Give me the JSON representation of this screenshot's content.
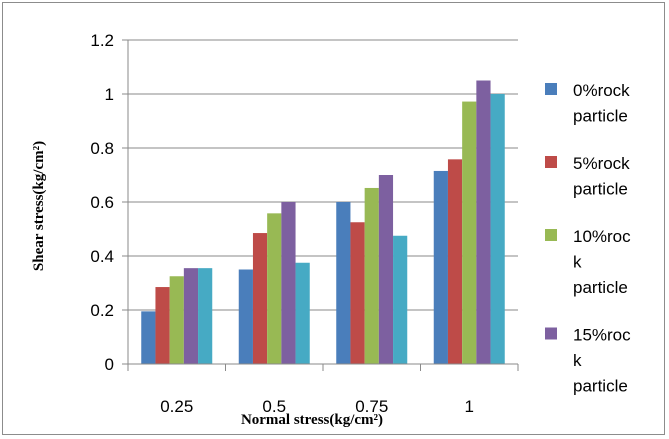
{
  "chart_data": {
    "type": "bar",
    "title": "",
    "xlabel": "Normal stress(kg/cm²)",
    "ylabel": "Shear stress(kg/cm²)",
    "ylim": [
      0,
      1.2
    ],
    "yticks": [
      "0",
      "0.2",
      "0.4",
      "0.6",
      "0.8",
      "1",
      "1.2"
    ],
    "categories": [
      "0.25",
      "0.5",
      "0.75",
      "1"
    ],
    "grid": "horizontal",
    "legend_position": "right",
    "series": [
      {
        "name": "0%rock particle",
        "legend_lines": [
          "0%rock",
          "particle"
        ],
        "color": "#4a7ebb",
        "values": [
          0.195,
          0.35,
          0.6,
          0.715
        ]
      },
      {
        "name": "5%rock particle",
        "legend_lines": [
          "5%rock",
          "particle"
        ],
        "color": "#be4b48",
        "values": [
          0.285,
          0.485,
          0.525,
          0.758
        ]
      },
      {
        "name": "10%rock particle",
        "legend_lines": [
          "10%roc",
          "k",
          "particle"
        ],
        "color": "#98b954",
        "values": [
          0.325,
          0.558,
          0.652,
          0.972
        ]
      },
      {
        "name": "15%rock particle",
        "legend_lines": [
          "15%roc",
          "k",
          "particle"
        ],
        "color": "#7d60a0",
        "values": [
          0.355,
          0.6,
          0.7,
          1.05
        ]
      },
      {
        "name": "",
        "legend_lines": [],
        "color": "#46aac4",
        "values": [
          0.355,
          0.375,
          0.475,
          1.0
        ]
      }
    ]
  }
}
